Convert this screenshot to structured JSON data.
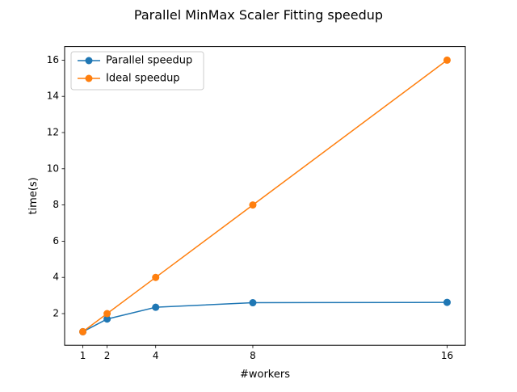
{
  "chart_data": {
    "type": "line",
    "title": "Parallel MinMax Scaler Fitting speedup",
    "xlabel": "#workers",
    "ylabel": "time(s)",
    "x": [
      1,
      2,
      4,
      8,
      16
    ],
    "xticks": [
      "1",
      "2",
      "4",
      "8",
      "16"
    ],
    "yticks": [
      "2",
      "4",
      "6",
      "8",
      "10",
      "12",
      "14",
      "16"
    ],
    "xlim": [
      0.25,
      16.75
    ],
    "ylim": [
      0.25,
      16.75
    ],
    "grid": false,
    "legend_position": "upper-left",
    "series": [
      {
        "name": "Parallel speedup",
        "color": "#1f77b4",
        "marker": "circle",
        "values": [
          1.0,
          1.7,
          2.35,
          2.6,
          2.62
        ]
      },
      {
        "name": "Ideal speedup",
        "color": "#ff7f0e",
        "marker": "circle",
        "values": [
          1,
          2,
          4,
          8,
          16
        ]
      }
    ]
  }
}
